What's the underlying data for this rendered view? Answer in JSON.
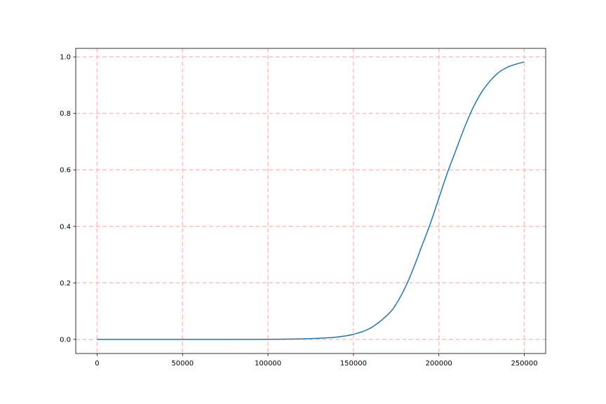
{
  "chart_data": {
    "type": "line",
    "title": "",
    "xlabel": "",
    "ylabel": "",
    "xlim": [
      -12500,
      262500
    ],
    "ylim": [
      -0.05,
      1.03
    ],
    "grid": true,
    "colors": {
      "series": "#1f77b4",
      "grid": "#ffaaaa"
    },
    "x_ticks": [
      0,
      50000,
      100000,
      150000,
      200000,
      250000
    ],
    "x_tick_labels": [
      "0",
      "50000",
      "100000",
      "150000",
      "200000",
      "250000"
    ],
    "y_ticks": [
      0.0,
      0.2,
      0.4,
      0.6,
      0.8,
      1.0
    ],
    "y_tick_labels": [
      "0.0",
      "0.2",
      "0.4",
      "0.6",
      "0.8",
      "1.0"
    ],
    "series": [
      {
        "x": [
          0,
          25000,
          50000,
          75000,
          100000,
          110000,
          120000,
          130000,
          140000,
          150000,
          160000,
          170000,
          175000,
          180000,
          185000,
          190000,
          195000,
          200000,
          205000,
          210000,
          215000,
          220000,
          225000,
          230000,
          235000,
          240000,
          245000,
          250000
        ],
        "y": [
          0.0,
          0.0,
          0.0,
          0.0,
          0.0004,
          0.0008,
          0.0017,
          0.004,
          0.008,
          0.018,
          0.04,
          0.087,
          0.125,
          0.18,
          0.25,
          0.33,
          0.41,
          0.5,
          0.59,
          0.67,
          0.75,
          0.82,
          0.875,
          0.915,
          0.945,
          0.963,
          0.974,
          0.982
        ]
      }
    ]
  }
}
